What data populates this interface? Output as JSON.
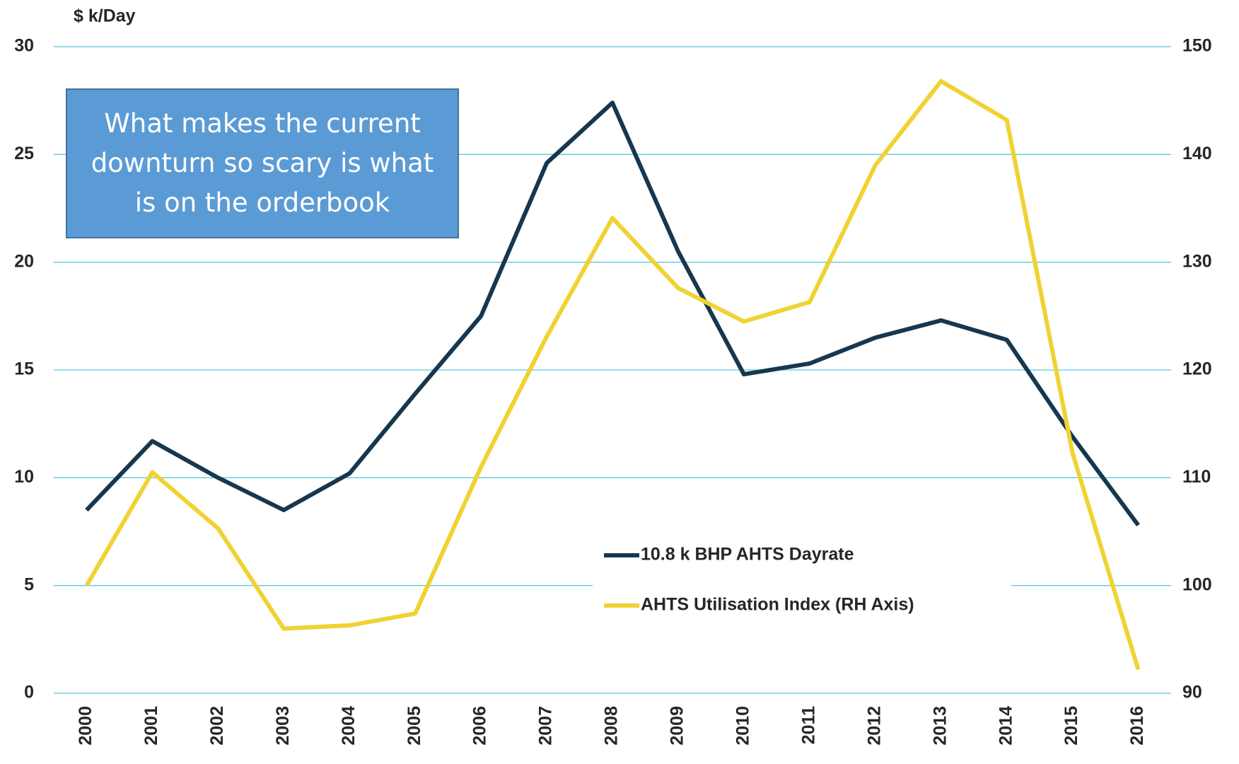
{
  "chart_data": {
    "type": "line",
    "y_label": "$ k/Day",
    "annotation": "What makes the current downturn so scary is what is on the orderbook",
    "categories": [
      "2000",
      "2001",
      "2002",
      "2003",
      "2004",
      "2005",
      "2006",
      "2007",
      "2008",
      "2009",
      "2010",
      "2011",
      "2012",
      "2013",
      "2014",
      "2015",
      "2016"
    ],
    "series": [
      {
        "name": "10.8 k BHP AHTS Dayrate",
        "color": "#17374f",
        "axis": "y",
        "values": [
          8.5,
          11.7,
          10.0,
          8.5,
          10.2,
          13.9,
          17.5,
          24.6,
          27.4,
          20.5,
          14.8,
          15.3,
          16.5,
          17.3,
          16.4,
          11.9,
          7.8
        ]
      },
      {
        "name": "AHTS Utilisation Index (RH Axis)",
        "color": "#f0d232",
        "axis": "y2",
        "values": [
          100,
          110.5,
          105.3,
          96.0,
          96.3,
          97.4,
          111,
          123.1,
          134.1,
          127.6,
          124.5,
          126.3,
          139,
          146.8,
          143.2,
          112.3,
          92.2
        ]
      }
    ],
    "ylim": [
      0,
      30
    ],
    "yticks": [
      0,
      5,
      10,
      15,
      20,
      25,
      30
    ],
    "y2lim": [
      90,
      150
    ],
    "y2ticks": [
      90,
      100,
      110,
      120,
      130,
      140,
      150
    ],
    "grid": true,
    "grid_color": "#5bc8dc",
    "annotation_color": "#5b9bd5"
  }
}
